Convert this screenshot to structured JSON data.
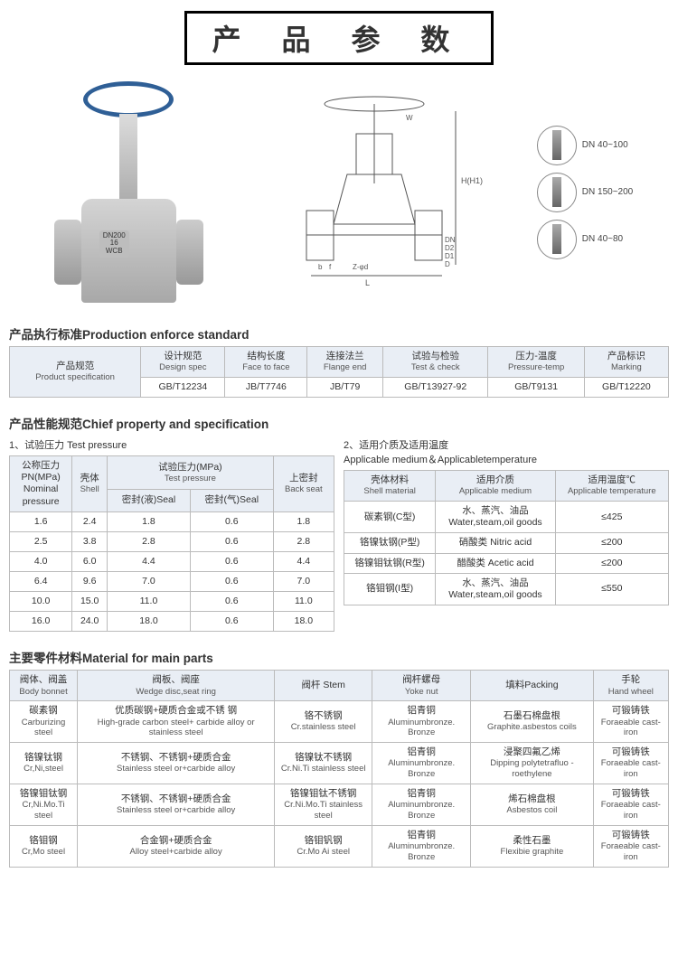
{
  "title": "产 品 参 数",
  "dn_labels": [
    "DN 40~100",
    "DN 150~200",
    "DN 40~80"
  ],
  "valve_marking": {
    "line1": "DN200",
    "line2": "16",
    "line3": "WCB"
  },
  "diagram_dims": [
    "H(H1)",
    "W",
    "L",
    "D",
    "D1",
    "D2",
    "DN",
    "Z-φd",
    "b",
    "f"
  ],
  "section1": {
    "heading": "产品执行标准Production enforce standard",
    "cols": [
      {
        "cn": "产品规范",
        "en": "Product specification"
      },
      {
        "cn": "设计规范",
        "en": "Design spec"
      },
      {
        "cn": "结构长度",
        "en": "Face to face"
      },
      {
        "cn": "连接法兰",
        "en": "Flange end"
      },
      {
        "cn": "试验与检验",
        "en": "Test & check"
      },
      {
        "cn": "压力-温度",
        "en": "Pressure-temp"
      },
      {
        "cn": "产品标识",
        "en": "Marking"
      }
    ],
    "row": [
      "GB/T12234",
      "JB/T7746",
      "JB/T79",
      "GB/T13927-92",
      "GB/T9131",
      "GB/T12220"
    ]
  },
  "section2": {
    "heading": "产品性能规范Chief property and specification",
    "left_label": "1、试验压力 Test pressure",
    "right_label": "2、适用介质及适用温度\nApplicable medium＆Applicabletemperature",
    "left": {
      "h_pn": {
        "cn": "公称压力\nPN(MPa)\nNominal\npressure"
      },
      "h_shell": {
        "cn": "壳体",
        "en": "Shell"
      },
      "h_tp": {
        "cn": "试验压力(MPa)",
        "en": "Test pressure"
      },
      "h_sealL": "密封(液)Seal",
      "h_sealG": "密封(气)Seal",
      "h_back": {
        "cn": "上密封",
        "en": "Back seat"
      },
      "rows": [
        [
          "1.6",
          "2.4",
          "1.8",
          "0.6",
          "1.8"
        ],
        [
          "2.5",
          "3.8",
          "2.8",
          "0.6",
          "2.8"
        ],
        [
          "4.0",
          "6.0",
          "4.4",
          "0.6",
          "4.4"
        ],
        [
          "6.4",
          "9.6",
          "7.0",
          "0.6",
          "7.0"
        ],
        [
          "10.0",
          "15.0",
          "11.0",
          "0.6",
          "11.0"
        ],
        [
          "16.0",
          "24.0",
          "18.0",
          "0.6",
          "18.0"
        ]
      ]
    },
    "right": {
      "cols": [
        {
          "cn": "壳体材料",
          "en": "Shell material"
        },
        {
          "cn": "适用介质",
          "en": "Applicable medium"
        },
        {
          "cn": "适用温度℃",
          "en": "Applicable temperature"
        }
      ],
      "rows": [
        [
          "碳素钢(C型)",
          "水、蒸汽、油品\nWater,steam,oil goods",
          "≤425"
        ],
        [
          "铬镍钛钢(P型)",
          "硝酸类 Nitric acid",
          "≤200"
        ],
        [
          "铬镍钼钛钢(R型)",
          "醋酸类 Acetic acid",
          "≤200"
        ],
        [
          "铬钼钢(I型)",
          "水、蒸汽、油品\nWater,steam,oil goods",
          "≤550"
        ]
      ]
    }
  },
  "section3": {
    "heading": "主要零件材料Material for main parts",
    "cols": [
      {
        "cn": "阀体、阀盖",
        "en": "Body bonnet"
      },
      {
        "cn": "阀板、阀座",
        "en": "Wedge disc,seat ring"
      },
      {
        "cn": "阀杆 Stem"
      },
      {
        "cn": "阀杆螺母",
        "en": "Yoke nut"
      },
      {
        "cn": "填料Packing"
      },
      {
        "cn": "手轮",
        "en": "Hand wheel"
      }
    ],
    "rows": [
      [
        {
          "cn": "碳素钢",
          "en": "Carburizing steel"
        },
        {
          "cn": "优质碳钢+硬质合金或不锈 钢",
          "en": "High-grade carbon steel+ carbide alloy or stainless steel"
        },
        {
          "cn": "铬不锈钢",
          "en": "Cr.stainless steel"
        },
        {
          "cn": "铝青铜",
          "en": "Aluminumbronze. Bronze"
        },
        {
          "cn": "石墨石棉盘根",
          "en": "Graphite.asbestos coils"
        },
        {
          "cn": "可锻铸铁",
          "en": "Foraeable cast-iron"
        }
      ],
      [
        {
          "cn": "铬镍钛钢",
          "en": "Cr,Ni,steel"
        },
        {
          "cn": "不锈钢、不锈钢+硬质合金",
          "en": "Stainless steel or+carbide alloy"
        },
        {
          "cn": "铬镍钛不锈钢",
          "en": "Cr.Ni.Ti stainless steel"
        },
        {
          "cn": "铝青铜",
          "en": "Aluminumbronze. Bronze"
        },
        {
          "cn": "浸聚四氟乙烯",
          "en": "Dipping polytetrafluo -roethylene"
        },
        {
          "cn": "可锻铸铁",
          "en": "Foraeable cast-iron"
        }
      ],
      [
        {
          "cn": "铬镍钼钛钢",
          "en": "Cr,Ni.Mo.Ti steel"
        },
        {
          "cn": "不锈钢、不锈钢+硬质合金",
          "en": "Stainless steel or+carbide alloy"
        },
        {
          "cn": "铬镍钼钛不锈钢",
          "en": "Cr.Ni.Mo.Ti stainless steel"
        },
        {
          "cn": "铝青铜",
          "en": "Aluminumbronze. Bronze"
        },
        {
          "cn": "烯石棉盘根",
          "en": "Asbestos coil"
        },
        {
          "cn": "可锻铸铁",
          "en": "Foraeable cast-iron"
        }
      ],
      [
        {
          "cn": "铬钼钢",
          "en": "Cr,Mo steel"
        },
        {
          "cn": "合金钢+硬质合金",
          "en": "Alloy steel+carbide alloy"
        },
        {
          "cn": "铬钼钒钢",
          "en": "Cr.Mo Ai steel"
        },
        {
          "cn": "铝青铜",
          "en": "Aluminumbronze. Bronze"
        },
        {
          "cn": "柔性石墨",
          "en": "Flexibie graphite"
        },
        {
          "cn": "可锻铸铁",
          "en": "Foraeable cast-iron"
        }
      ]
    ]
  }
}
